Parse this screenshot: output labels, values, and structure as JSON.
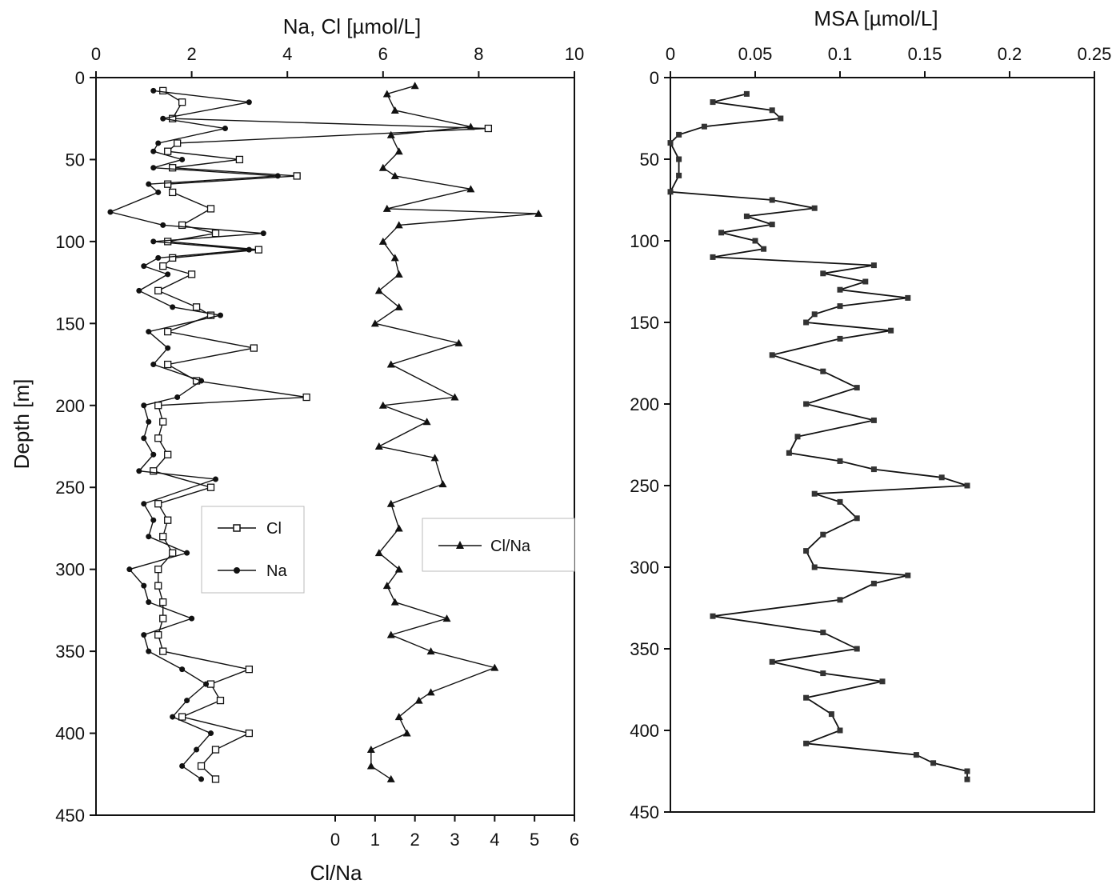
{
  "chart_data": [
    {
      "type": "line",
      "panel": "left",
      "ylabel": "Depth [m]",
      "ylim": [
        0,
        450
      ],
      "yticks": [
        0,
        50,
        100,
        150,
        200,
        250,
        300,
        350,
        400,
        450
      ],
      "y_inverted": true,
      "top_axis": {
        "label": "Na, Cl   [µmol/L]",
        "range": [
          0,
          10
        ],
        "ticks": [
          0,
          2,
          4,
          6,
          8,
          10
        ]
      },
      "bottom_axis": {
        "label": "Cl/Na",
        "range": [
          -6,
          6
        ],
        "ticks": [
          0,
          1,
          2,
          3,
          4,
          5,
          6
        ]
      },
      "legend": {
        "entries": [
          "Cl",
          "Na",
          "Cl/Na"
        ],
        "placement": "middle"
      },
      "series": [
        {
          "name": "Cl",
          "axis": "top",
          "marker": "open-square",
          "depth": [
            8,
            15,
            25,
            31,
            40,
            45,
            50,
            55,
            60,
            65,
            70,
            80,
            90,
            95,
            100,
            105,
            110,
            115,
            120,
            130,
            140,
            145,
            155,
            165,
            175,
            185,
            195,
            200,
            210,
            220,
            230,
            240,
            250,
            260,
            270,
            280,
            290,
            300,
            310,
            320,
            330,
            340,
            350,
            361,
            370,
            380,
            390,
            400,
            410,
            420,
            428
          ],
          "values": [
            1.4,
            1.8,
            1.6,
            8.2,
            1.7,
            1.5,
            3.0,
            1.6,
            4.2,
            1.5,
            1.6,
            2.4,
            1.8,
            2.5,
            1.5,
            3.4,
            1.6,
            1.4,
            2.0,
            1.3,
            2.1,
            2.4,
            1.5,
            3.3,
            1.5,
            2.1,
            4.4,
            1.3,
            1.4,
            1.3,
            1.5,
            1.2,
            2.4,
            1.3,
            1.5,
            1.4,
            1.6,
            1.3,
            1.3,
            1.4,
            1.4,
            1.3,
            1.4,
            3.2,
            2.4,
            2.6,
            1.8,
            3.2,
            2.5,
            2.2,
            2.5
          ]
        },
        {
          "name": "Na",
          "axis": "top",
          "marker": "filled-dot",
          "depth": [
            8,
            15,
            25,
            31,
            40,
            45,
            50,
            55,
            60,
            65,
            70,
            82,
            90,
            95,
            100,
            105,
            110,
            115,
            120,
            130,
            140,
            145,
            155,
            165,
            175,
            185,
            195,
            200,
            210,
            220,
            230,
            240,
            245,
            260,
            270,
            280,
            290,
            300,
            310,
            320,
            330,
            340,
            350,
            361,
            370,
            380,
            390,
            400,
            410,
            420,
            428
          ],
          "values": [
            1.2,
            3.2,
            1.4,
            2.7,
            1.3,
            1.2,
            1.8,
            1.2,
            3.8,
            1.1,
            1.3,
            0.3,
            1.4,
            3.5,
            1.2,
            3.2,
            1.3,
            1.0,
            1.5,
            0.9,
            1.6,
            2.6,
            1.1,
            1.5,
            1.2,
            2.2,
            1.7,
            1.0,
            1.1,
            1.0,
            1.2,
            0.9,
            2.5,
            1.0,
            1.2,
            1.1,
            1.9,
            0.7,
            1.0,
            1.1,
            2.0,
            1.0,
            1.1,
            1.8,
            2.3,
            1.9,
            1.6,
            2.4,
            2.1,
            1.8,
            2.2
          ]
        },
        {
          "name": "Cl/Na",
          "axis": "bottom",
          "marker": "filled-triangle",
          "depth": [
            5,
            10,
            20,
            30,
            35,
            45,
            55,
            60,
            68,
            80,
            83,
            90,
            100,
            110,
            120,
            130,
            140,
            150,
            162,
            175,
            195,
            200,
            210,
            225,
            232,
            248,
            260,
            275,
            290,
            300,
            310,
            320,
            330,
            340,
            350,
            360,
            375,
            380,
            390,
            400,
            410,
            420,
            428
          ],
          "values": [
            2.0,
            1.3,
            1.5,
            3.4,
            1.4,
            1.6,
            1.2,
            1.5,
            3.4,
            1.3,
            5.1,
            1.6,
            1.2,
            1.5,
            1.6,
            1.1,
            1.6,
            1.0,
            3.1,
            1.4,
            3.0,
            1.2,
            2.3,
            1.1,
            2.5,
            2.7,
            1.4,
            1.6,
            1.1,
            1.6,
            1.3,
            1.5,
            2.8,
            1.4,
            2.4,
            4.0,
            2.4,
            2.1,
            1.6,
            1.8,
            0.9,
            0.9,
            1.4
          ]
        }
      ]
    },
    {
      "type": "line",
      "panel": "right",
      "title": "MSA [µmol/L]",
      "ylim": [
        0,
        450
      ],
      "yticks": [
        0,
        50,
        100,
        150,
        200,
        250,
        300,
        350,
        400,
        450
      ],
      "y_inverted": true,
      "xlim": [
        0,
        0.25
      ],
      "xticks": [
        "0",
        "0.05",
        "0.1",
        "0.15",
        "0.2",
        "0.25"
      ],
      "series": [
        {
          "name": "",
          "marker": "filled-square",
          "depth": [
            10,
            15,
            20,
            25,
            30,
            35,
            40,
            50,
            60,
            70,
            75,
            80,
            85,
            90,
            95,
            100,
            105,
            110,
            115,
            120,
            125,
            130,
            135,
            140,
            145,
            150,
            155,
            160,
            170,
            180,
            190,
            200,
            210,
            220,
            230,
            235,
            240,
            245,
            250,
            255,
            260,
            270,
            280,
            290,
            300,
            305,
            310,
            320,
            330,
            340,
            350,
            358,
            365,
            370,
            380,
            390,
            400,
            408,
            415,
            420,
            425,
            430
          ],
          "values": [
            0.045,
            0.025,
            0.06,
            0.065,
            0.02,
            0.005,
            0.0,
            0.005,
            0.005,
            0.0,
            0.06,
            0.085,
            0.045,
            0.06,
            0.03,
            0.05,
            0.055,
            0.025,
            0.12,
            0.09,
            0.115,
            0.1,
            0.14,
            0.1,
            0.085,
            0.08,
            0.13,
            0.1,
            0.06,
            0.09,
            0.11,
            0.08,
            0.12,
            0.075,
            0.07,
            0.1,
            0.12,
            0.16,
            0.175,
            0.085,
            0.1,
            0.11,
            0.09,
            0.08,
            0.085,
            0.14,
            0.12,
            0.1,
            0.025,
            0.09,
            0.11,
            0.06,
            0.09,
            0.125,
            0.08,
            0.095,
            0.1,
            0.08,
            0.145,
            0.155,
            0.175,
            0.175
          ]
        }
      ]
    }
  ],
  "legend_labels": {
    "cl": "Cl",
    "na": "Na",
    "clna": "Cl/Na"
  }
}
